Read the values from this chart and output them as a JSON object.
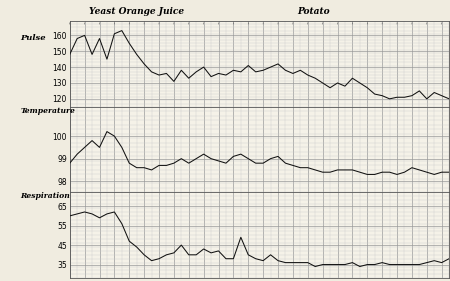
{
  "title_yeast": "Yeast Orange Juice",
  "title_potato": "Potato",
  "label_pulse": "Pulse",
  "label_temp": "Temperature",
  "label_resp": "Respiration",
  "bg_color": "#f0ece0",
  "plot_bg": "#f5f2e8",
  "line_color": "#111111",
  "grid_major_color": "#999999",
  "grid_minor_color": "#cccccc",
  "pulse": {
    "ylim": [
      115,
      168
    ],
    "yticks": [
      120,
      130,
      140,
      150,
      160
    ],
    "y": [
      148,
      158,
      160,
      148,
      158,
      145,
      161,
      163,
      155,
      148,
      142,
      137,
      135,
      136,
      131,
      138,
      133,
      137,
      140,
      134,
      136,
      135,
      138,
      137,
      141,
      137,
      138,
      140,
      142,
      138,
      136,
      138,
      135,
      133,
      130,
      127,
      130,
      128,
      133,
      130,
      127,
      123,
      122,
      120,
      121,
      121,
      122,
      125,
      120,
      124,
      122,
      120
    ]
  },
  "temperature": {
    "ylim": [
      97.5,
      101.2
    ],
    "yticks": [
      98,
      99,
      100
    ],
    "y": [
      98.8,
      99.2,
      99.5,
      99.8,
      99.5,
      100.2,
      100.0,
      99.5,
      98.8,
      98.6,
      98.6,
      98.5,
      98.7,
      98.7,
      98.8,
      99.0,
      98.8,
      99.0,
      99.2,
      99.0,
      98.9,
      98.8,
      99.1,
      99.2,
      99.0,
      98.8,
      98.8,
      99.0,
      99.1,
      98.8,
      98.7,
      98.6,
      98.6,
      98.5,
      98.4,
      98.4,
      98.5,
      98.5,
      98.5,
      98.4,
      98.3,
      98.3,
      98.4,
      98.4,
      98.3,
      98.4,
      98.6,
      98.5,
      98.4,
      98.3,
      98.4,
      98.4
    ]
  },
  "respiration": {
    "ylim": [
      28,
      72
    ],
    "yticks": [
      35,
      45,
      55,
      65
    ],
    "y": [
      60,
      61,
      62,
      61,
      59,
      61,
      62,
      56,
      47,
      44,
      40,
      37,
      38,
      40,
      41,
      45,
      40,
      40,
      43,
      41,
      42,
      38,
      38,
      49,
      40,
      38,
      37,
      40,
      37,
      36,
      36,
      36,
      36,
      34,
      35,
      35,
      35,
      35,
      36,
      34,
      35,
      35,
      36,
      35,
      35,
      35,
      35,
      35,
      36,
      37,
      36,
      38
    ]
  },
  "n_points": 52
}
